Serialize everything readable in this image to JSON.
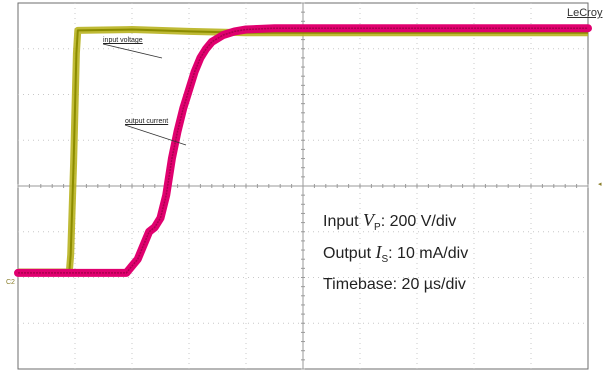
{
  "brand": "LeCroy",
  "trace_labels": {
    "input": "input voltage",
    "output": "output current"
  },
  "settings": {
    "input_prefix": "Input ",
    "input_var": "V",
    "input_sub": "P",
    "input_value": ": 200 V/div",
    "output_prefix": "Output ",
    "output_var": "I",
    "output_sub": "S",
    "output_value": ": 10 mA/div",
    "timebase": "Timebase: 20 µs/div"
  },
  "markers": {
    "left": "C2",
    "right": "◂"
  },
  "colors": {
    "input": "#8c8c00",
    "input_fill": "#b8b31f",
    "output": "#e0006f",
    "output_core": "#aa004e",
    "grid": "#c8c8c8",
    "frame": "#6e6e6e"
  },
  "chart_data": {
    "type": "line",
    "title": "",
    "xlabel": "",
    "ylabel": "",
    "x_unit": "µs",
    "x_per_div": 20,
    "x_divisions": 10,
    "xlim": [
      0,
      200
    ],
    "y_divisions": 8,
    "ylim": [
      -4,
      4
    ],
    "grid": true,
    "series": [
      {
        "name": "input voltage",
        "scale": "200 V/div",
        "x": [
          0,
          18,
          18.5,
          19.5,
          20.5,
          21,
          40,
          60,
          80,
          100,
          120,
          140,
          160,
          180,
          200
        ],
        "y": [
          -1.88,
          -1.88,
          -1.5,
          0.5,
          2.9,
          3.4,
          3.42,
          3.38,
          3.35,
          3.35,
          3.35,
          3.35,
          3.35,
          3.35,
          3.35
        ]
      },
      {
        "name": "output current",
        "scale": "10 mA/div",
        "x": [
          0,
          38,
          42,
          46,
          48,
          50,
          52,
          54,
          56,
          58,
          60,
          62,
          64,
          66,
          68,
          72,
          76,
          80,
          90,
          100,
          120,
          140,
          160,
          180,
          200
        ],
        "y": [
          -1.9,
          -1.9,
          -1.6,
          -1.0,
          -0.9,
          -0.7,
          -0.2,
          0.6,
          1.2,
          1.7,
          2.1,
          2.5,
          2.8,
          3.0,
          3.15,
          3.3,
          3.38,
          3.42,
          3.45,
          3.45,
          3.45,
          3.45,
          3.45,
          3.45,
          3.45
        ]
      }
    ]
  }
}
